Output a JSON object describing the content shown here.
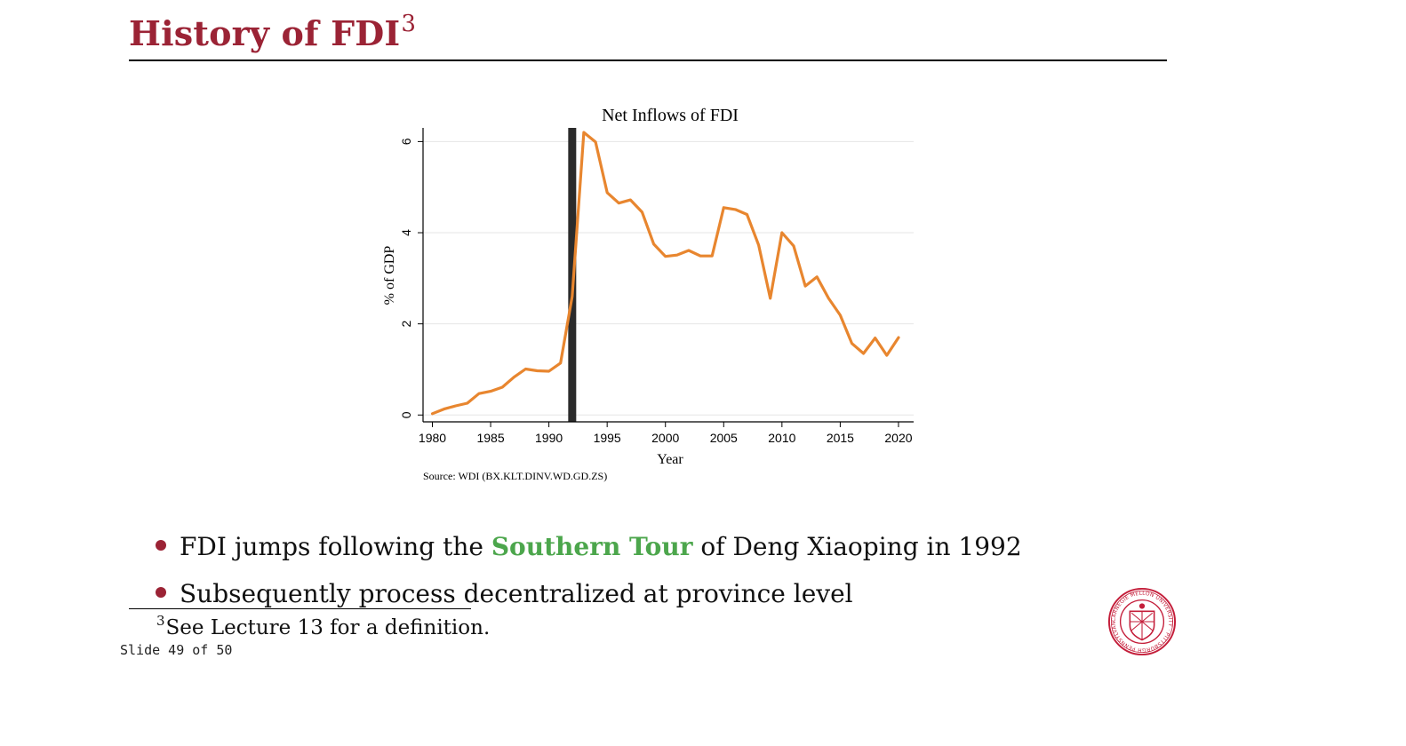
{
  "slide": {
    "title": "History of FDI",
    "title_footnote_mark": "3",
    "counter": "Slide 49 of 50"
  },
  "bullets": [
    {
      "before": "FDI jumps following the ",
      "highlight": "Southern Tour",
      "after": " of Deng Xiaoping in 1992"
    },
    {
      "before": "Subsequently process decentralized at province level",
      "highlight": "",
      "after": ""
    }
  ],
  "footnote": {
    "mark": "3",
    "text": "See Lecture 13 for a definition."
  },
  "colors": {
    "title": "#9b2335",
    "bullet": "#9b2335",
    "highlight": "#4ca64c",
    "line": "#e8862f",
    "marker": "#2b2b2b"
  },
  "logo": {
    "name": "carnegie-mellon-seal",
    "ring_text": "CARNEGIE MELLON UNIVERSITY · PITTSBURGH PENNSYLVANIA 1900"
  },
  "chart_data": {
    "type": "line",
    "title": "Net Inflows of FDI",
    "xlabel": "Year",
    "ylabel": "% of GDP",
    "source": "Source: WDI (BX.KLT.DINV.WD.GD.ZS)",
    "xlim": [
      1980,
      2020
    ],
    "ylim": [
      0,
      6
    ],
    "xticks": [
      1980,
      1985,
      1990,
      1995,
      2000,
      2005,
      2010,
      2015,
      2020
    ],
    "yticks": [
      0,
      2,
      4,
      6
    ],
    "grid": true,
    "vertical_marker": 1992,
    "series": [
      {
        "x": [
          1980,
          1981,
          1982,
          1983,
          1984,
          1985,
          1986,
          1987,
          1988,
          1989,
          1990,
          1991,
          1992,
          1993,
          1994,
          1995,
          1996,
          1997,
          1998,
          1999,
          2000,
          2001,
          2002,
          2003,
          2004,
          2005,
          2006,
          2007,
          2008,
          2009,
          2010,
          2011,
          2012,
          2013,
          2014,
          2015,
          2016,
          2017,
          2018,
          2019,
          2020
        ],
        "values": [
          0.03,
          0.13,
          0.2,
          0.26,
          0.47,
          0.52,
          0.61,
          0.83,
          1.01,
          0.97,
          0.96,
          1.14,
          2.6,
          6.2,
          5.99,
          4.88,
          4.65,
          4.72,
          4.45,
          3.75,
          3.48,
          3.51,
          3.61,
          3.49,
          3.49,
          4.55,
          4.51,
          4.4,
          3.73,
          2.56,
          4.0,
          3.71,
          2.83,
          3.03,
          2.56,
          2.19,
          1.57,
          1.35,
          1.69,
          1.31,
          1.7
        ]
      }
    ]
  }
}
